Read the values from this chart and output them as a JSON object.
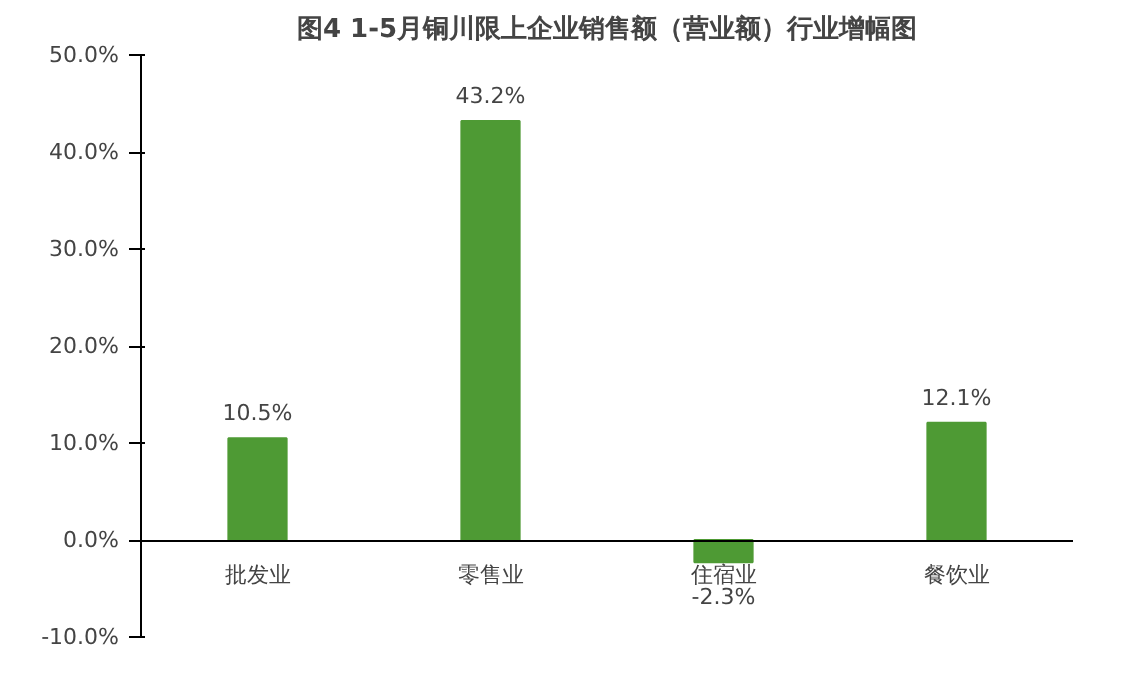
{
  "chart_data": {
    "type": "bar",
    "title": "图4 1-5月铜川限上企业销售额（营业额）行业增幅图",
    "categories": [
      "批发业",
      "零售业",
      "住宿业",
      "餐饮业"
    ],
    "values": [
      10.5,
      43.2,
      -2.3,
      12.1
    ],
    "value_labels": [
      "10.5%",
      "43.2%",
      "-2.3%",
      "12.1%"
    ],
    "color": "#4e9a34",
    "ylim": [
      -10,
      50
    ],
    "yticks": [
      {
        "value": -10,
        "label": "-10.0%"
      },
      {
        "value": 0,
        "label": "0.0%"
      },
      {
        "value": 10,
        "label": "10.0%"
      },
      {
        "value": 20,
        "label": "20.0%"
      },
      {
        "value": 30,
        "label": "30.0%"
      },
      {
        "value": 40,
        "label": "40.0%"
      },
      {
        "value": 50,
        "label": "50.0%"
      }
    ],
    "grid": false
  }
}
